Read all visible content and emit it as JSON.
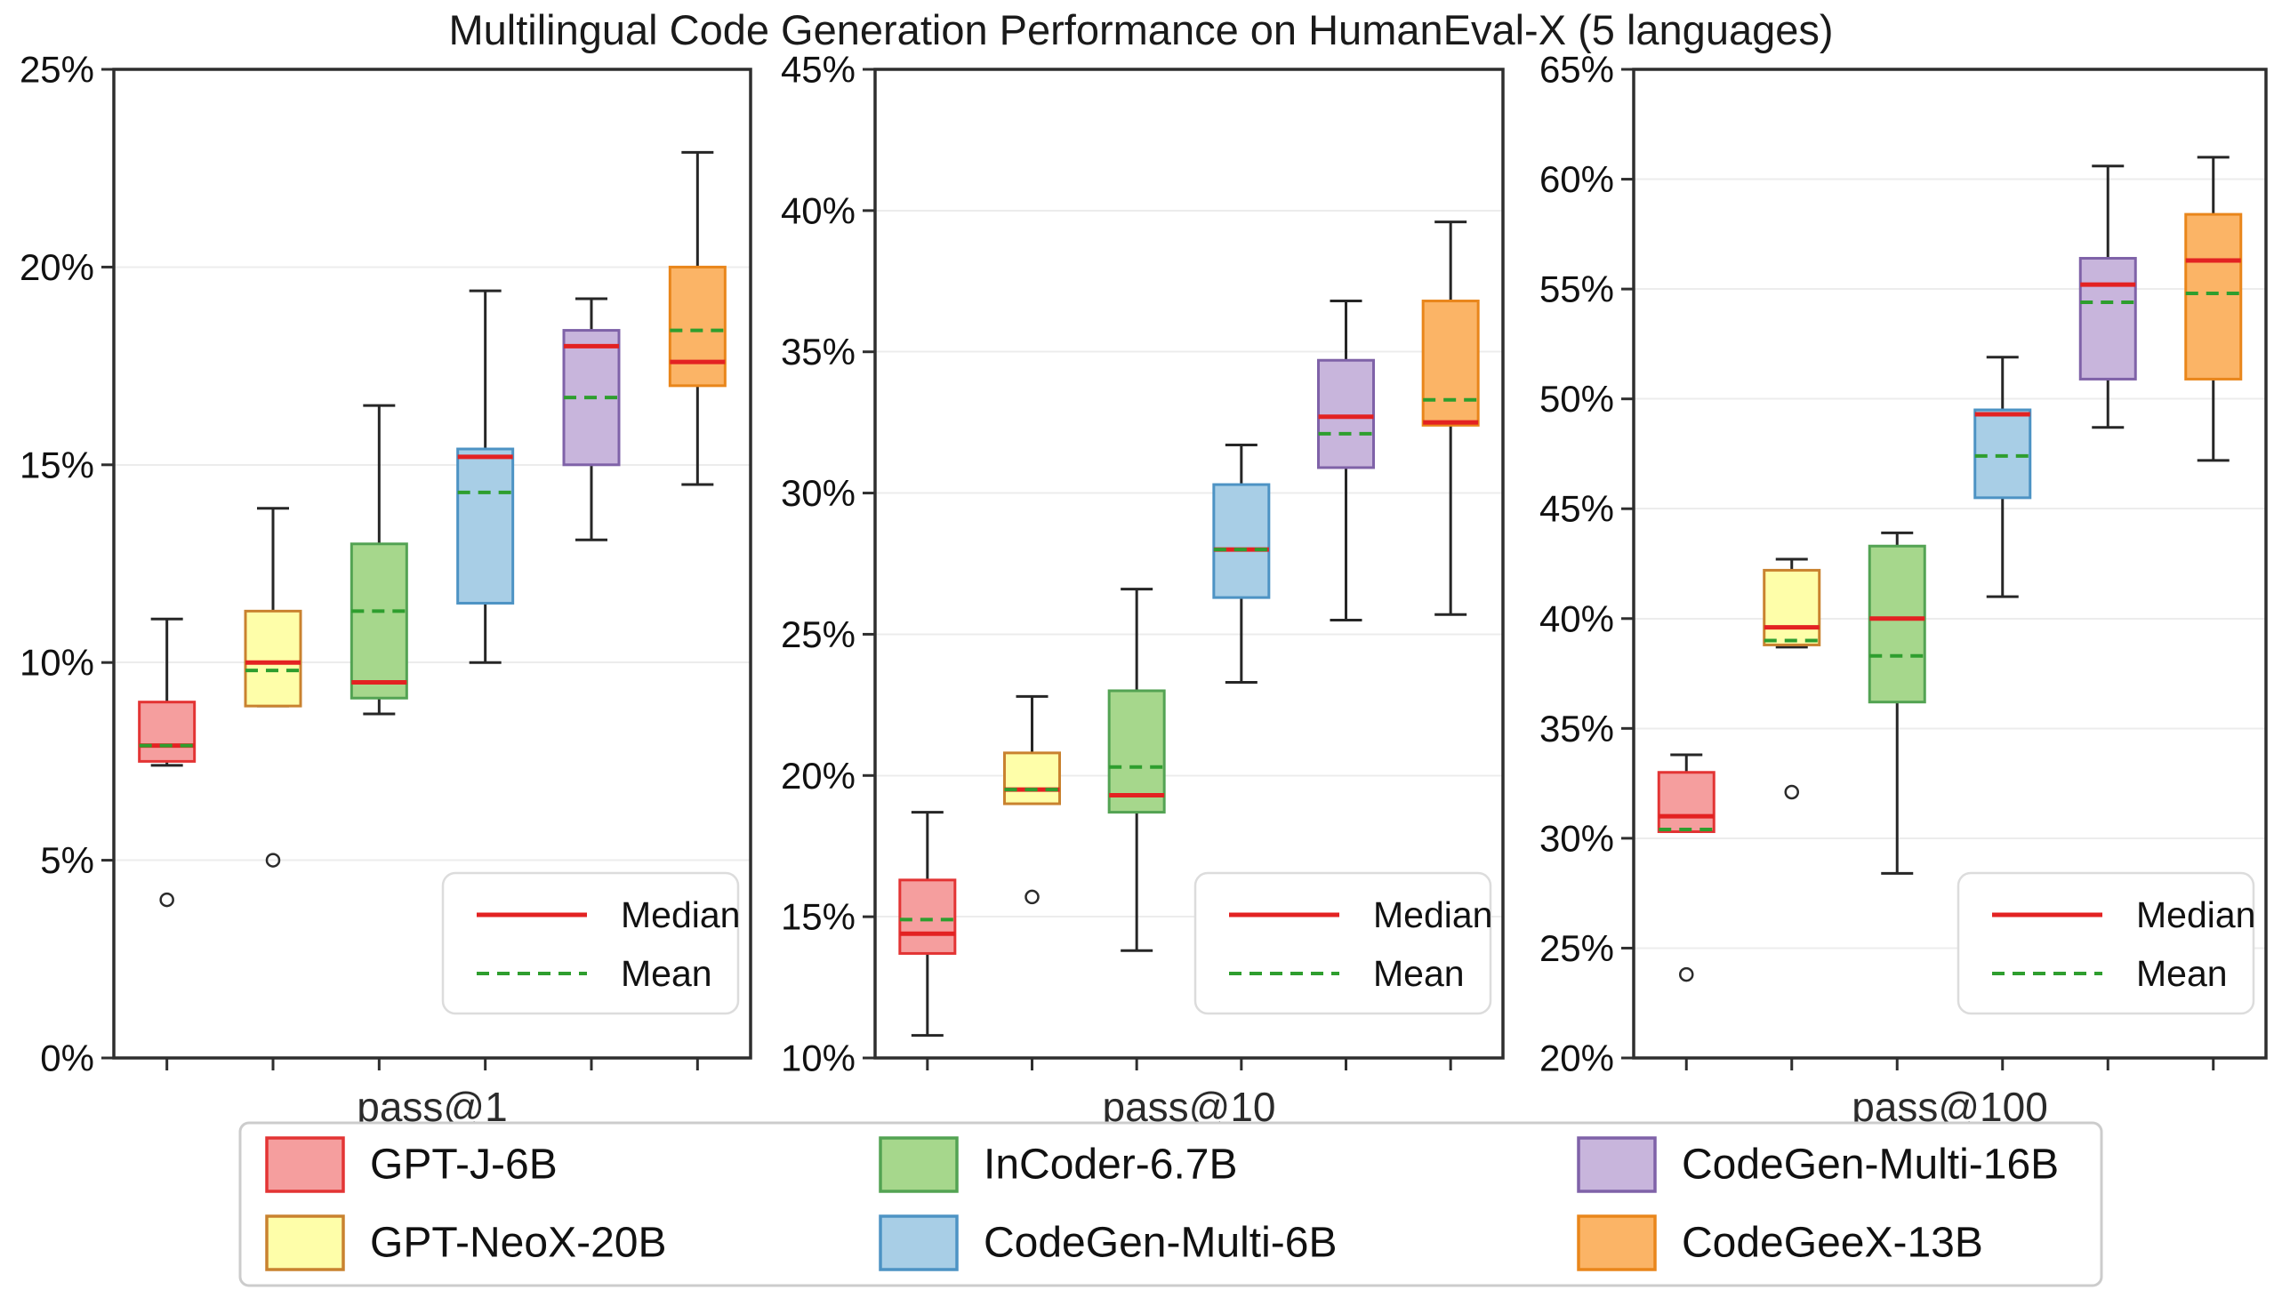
{
  "chart_data": {
    "type": "boxplot",
    "title": "Multilingual Code Generation Performance on HumanEval-X (5 languages)",
    "grid": true,
    "tick_suffix": "%",
    "legend_position": "bottom",
    "inner_legend": {
      "median_label": "Median",
      "mean_label": "Mean",
      "median_color": "#e32222",
      "mean_color": "#2e9e2e"
    },
    "style_colors": {
      "whisker": "#262626",
      "gridline": "#ececec",
      "frame": "#2e2e2e",
      "tick_text": "#111111",
      "xlabel_text": "#2b2b2b",
      "legend_border": "#cccccc",
      "inner_legend_border": "#dcdcdc",
      "background": "#ffffff"
    },
    "models": [
      {
        "name": "GPT-J-6B",
        "fill": "#f59e9e",
        "edge": "#e33434"
      },
      {
        "name": "GPT-NeoX-20B",
        "fill": "#fefea9",
        "edge": "#c9822f"
      },
      {
        "name": "InCoder-6.7B",
        "fill": "#a6d78c",
        "edge": "#53a353"
      },
      {
        "name": "CodeGen-Multi-6B",
        "fill": "#a8cee6",
        "edge": "#4d93c4"
      },
      {
        "name": "CodeGen-Multi-16B",
        "fill": "#c8b5dc",
        "edge": "#7f62a8"
      },
      {
        "name": "CodeGeeX-13B",
        "fill": "#fbb466",
        "edge": "#e9861b"
      }
    ],
    "legend_grid_order": [
      [
        "GPT-J-6B",
        "InCoder-6.7B",
        "CodeGen-Multi-16B"
      ],
      [
        "GPT-NeoX-20B",
        "CodeGen-Multi-6B",
        "CodeGeeX-13B"
      ]
    ],
    "subplots": [
      {
        "xlabel": "pass@1",
        "ylim": [
          0,
          25
        ],
        "ytick_step": 5,
        "boxes": [
          {
            "model": "GPT-J-6B",
            "whislo": 7.4,
            "q1": 7.5,
            "median": 7.9,
            "q3": 9.0,
            "whishi": 11.1,
            "mean": 7.9,
            "outliers": [
              4.0
            ]
          },
          {
            "model": "GPT-NeoX-20B",
            "whislo": 8.9,
            "q1": 8.9,
            "median": 10.0,
            "q3": 11.3,
            "whishi": 13.9,
            "mean": 9.8,
            "outliers": [
              5.0
            ]
          },
          {
            "model": "InCoder-6.7B",
            "whislo": 8.7,
            "q1": 9.1,
            "median": 9.5,
            "q3": 13.0,
            "whishi": 16.5,
            "mean": 11.3,
            "outliers": []
          },
          {
            "model": "CodeGen-Multi-6B",
            "whislo": 10.0,
            "q1": 11.5,
            "median": 15.2,
            "q3": 15.4,
            "whishi": 19.4,
            "mean": 14.3,
            "outliers": []
          },
          {
            "model": "CodeGen-Multi-16B",
            "whislo": 13.1,
            "q1": 15.0,
            "median": 18.0,
            "q3": 18.4,
            "whishi": 19.2,
            "mean": 16.7,
            "outliers": []
          },
          {
            "model": "CodeGeeX-13B",
            "whislo": 14.5,
            "q1": 17.0,
            "median": 17.6,
            "q3": 20.0,
            "whishi": 22.9,
            "mean": 18.4,
            "outliers": []
          }
        ]
      },
      {
        "xlabel": "pass@10",
        "ylim": [
          10,
          45
        ],
        "ytick_step": 5,
        "boxes": [
          {
            "model": "GPT-J-6B",
            "whislo": 10.8,
            "q1": 13.7,
            "median": 14.4,
            "q3": 16.3,
            "whishi": 18.7,
            "mean": 14.9,
            "outliers": []
          },
          {
            "model": "GPT-NeoX-20B",
            "whislo": 19.0,
            "q1": 19.0,
            "median": 19.5,
            "q3": 20.8,
            "whishi": 22.8,
            "mean": 19.5,
            "outliers": [
              15.7
            ]
          },
          {
            "model": "InCoder-6.7B",
            "whislo": 13.8,
            "q1": 18.7,
            "median": 19.3,
            "q3": 23.0,
            "whishi": 26.6,
            "mean": 20.3,
            "outliers": []
          },
          {
            "model": "CodeGen-Multi-6B",
            "whislo": 23.3,
            "q1": 26.3,
            "median": 28.0,
            "q3": 30.3,
            "whishi": 31.7,
            "mean": 28.0,
            "outliers": []
          },
          {
            "model": "CodeGen-Multi-16B",
            "whislo": 25.5,
            "q1": 30.9,
            "median": 32.7,
            "q3": 34.7,
            "whishi": 36.8,
            "mean": 32.1,
            "outliers": []
          },
          {
            "model": "CodeGeeX-13B",
            "whislo": 25.7,
            "q1": 32.4,
            "median": 32.5,
            "q3": 36.8,
            "whishi": 39.6,
            "mean": 33.3,
            "outliers": []
          }
        ]
      },
      {
        "xlabel": "pass@100",
        "ylim": [
          20,
          65
        ],
        "ytick_step": 5,
        "boxes": [
          {
            "model": "GPT-J-6B",
            "whislo": 30.3,
            "q1": 30.3,
            "median": 31.0,
            "q3": 33.0,
            "whishi": 33.8,
            "mean": 30.4,
            "outliers": [
              23.8
            ]
          },
          {
            "model": "GPT-NeoX-20B",
            "whislo": 38.7,
            "q1": 38.8,
            "median": 39.6,
            "q3": 42.2,
            "whishi": 42.7,
            "mean": 39.0,
            "outliers": [
              32.1
            ]
          },
          {
            "model": "InCoder-6.7B",
            "whislo": 28.4,
            "q1": 36.2,
            "median": 40.0,
            "q3": 43.3,
            "whishi": 43.9,
            "mean": 38.3,
            "outliers": []
          },
          {
            "model": "CodeGen-Multi-6B",
            "whislo": 41.0,
            "q1": 45.5,
            "median": 49.3,
            "q3": 49.5,
            "whishi": 51.9,
            "mean": 47.4,
            "outliers": []
          },
          {
            "model": "CodeGen-Multi-16B",
            "whislo": 48.7,
            "q1": 50.9,
            "median": 55.2,
            "q3": 56.4,
            "whishi": 60.6,
            "mean": 54.4,
            "outliers": []
          },
          {
            "model": "CodeGeeX-13B",
            "whislo": 47.2,
            "q1": 50.9,
            "median": 56.3,
            "q3": 58.4,
            "whishi": 61.0,
            "mean": 54.8,
            "outliers": []
          }
        ]
      }
    ]
  }
}
